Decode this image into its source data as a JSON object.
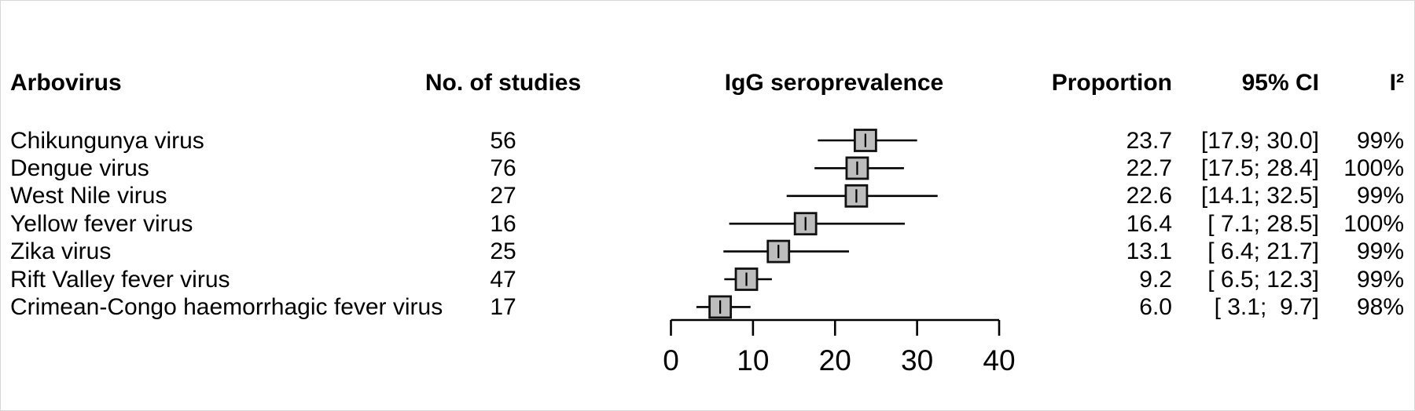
{
  "figure": {
    "background": "#ffffff",
    "border_color": "#d8d8d8"
  },
  "table": {
    "headers": {
      "arbovirus": "Arbovirus",
      "studies": "No. of studies",
      "plot": "IgG seroprevalence",
      "proportion": "Proportion",
      "ci": "95% CI",
      "i2": "I²"
    }
  },
  "chart_data": {
    "type": "forest",
    "title": "IgG seroprevalence",
    "xlabel": "",
    "xlim": [
      0,
      40
    ],
    "x_ticks": [
      "0",
      "10",
      "20",
      "30",
      "40"
    ],
    "x_tick_values": [
      0,
      10,
      20,
      30,
      40
    ],
    "grid": false,
    "marker_fill": "#bdbdbd",
    "marker_stroke": "#111111",
    "line_color": "#000000",
    "rows": [
      {
        "arbovirus": "Chikungunya virus",
        "studies": "56",
        "proportion": 23.7,
        "ci_low": 17.9,
        "ci_high": 30.0,
        "proportion_text": "23.7",
        "ci_text": "[17.9; 30.0]",
        "i2": "99%"
      },
      {
        "arbovirus": "Dengue virus",
        "studies": "76",
        "proportion": 22.7,
        "ci_low": 17.5,
        "ci_high": 28.4,
        "proportion_text": "22.7",
        "ci_text": "[17.5; 28.4]",
        "i2": "100%"
      },
      {
        "arbovirus": "West Nile virus",
        "studies": "27",
        "proportion": 22.6,
        "ci_low": 14.1,
        "ci_high": 32.5,
        "proportion_text": "22.6",
        "ci_text": "[14.1; 32.5]",
        "i2": "99%"
      },
      {
        "arbovirus": "Yellow fever virus",
        "studies": "16",
        "proportion": 16.4,
        "ci_low": 7.1,
        "ci_high": 28.5,
        "proportion_text": "16.4",
        "ci_text": "[ 7.1; 28.5]",
        "i2": "100%"
      },
      {
        "arbovirus": "Zika virus",
        "studies": "25",
        "proportion": 13.1,
        "ci_low": 6.4,
        "ci_high": 21.7,
        "proportion_text": "13.1",
        "ci_text": "[ 6.4; 21.7]",
        "i2": "99%"
      },
      {
        "arbovirus": "Rift Valley fever virus",
        "studies": "47",
        "proportion": 9.2,
        "ci_low": 6.5,
        "ci_high": 12.3,
        "proportion_text": "9.2",
        "ci_text": "[ 6.5; 12.3]",
        "i2": "99%"
      },
      {
        "arbovirus": "Crimean-Congo haemorrhagic fever virus",
        "studies": "17",
        "proportion": 6.0,
        "ci_low": 3.1,
        "ci_high": 9.7,
        "proportion_text": "6.0",
        "ci_text": "[ 3.1;  9.7]",
        "i2": "98%"
      }
    ]
  }
}
